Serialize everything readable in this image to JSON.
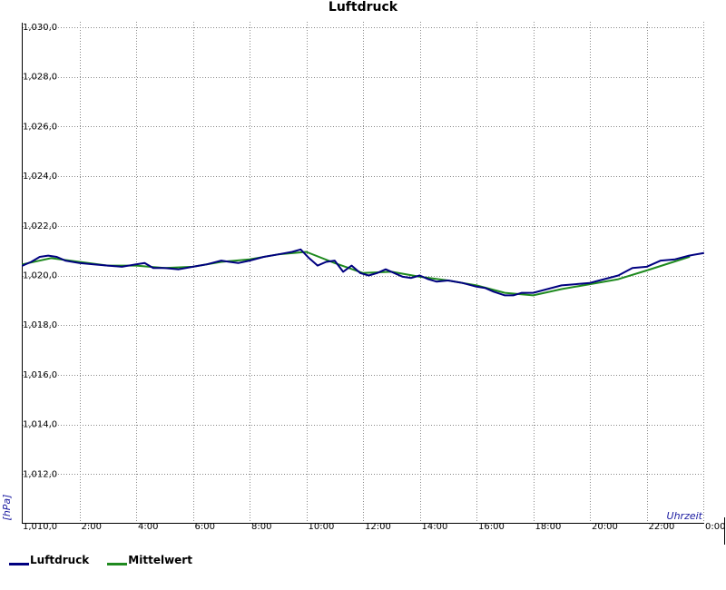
{
  "chart_data": {
    "type": "line",
    "title": "Luftdruck",
    "xlabel": "Uhrzeit",
    "ylabel": "[hPa]",
    "xlim": [
      0,
      24
    ],
    "ylim": [
      1010,
      1030
    ],
    "x_ticks": [
      "2:00",
      "4:00",
      "6:00",
      "8:00",
      "10:00",
      "12:00",
      "14:00",
      "16:00",
      "18:00",
      "20:00",
      "22:00",
      "0:00"
    ],
    "y_ticks": [
      "1,010,0",
      "1,012,0",
      "1,014,0",
      "1,016,0",
      "1,018,0",
      "1,020,0",
      "1,022,0",
      "1,024,0",
      "1,026,0",
      "1,028,0",
      "1,030,0"
    ],
    "grid": true,
    "legend_position": "bottom-left",
    "series": [
      {
        "name": "Luftdruck",
        "color": "#000080",
        "x": [
          0,
          0.3,
          0.6,
          0.9,
          1.2,
          1.5,
          2.0,
          2.5,
          3.0,
          3.5,
          4.0,
          4.3,
          4.6,
          5.0,
          5.5,
          6.0,
          6.5,
          7.0,
          7.3,
          7.6,
          8.0,
          8.5,
          9.0,
          9.5,
          9.8,
          10.1,
          10.4,
          10.7,
          11.0,
          11.3,
          11.6,
          11.9,
          12.2,
          12.5,
          12.8,
          13.1,
          13.4,
          13.7,
          14.0,
          14.3,
          14.6,
          15.0,
          15.5,
          16.0,
          16.3,
          16.6,
          17.0,
          17.3,
          17.6,
          18.0,
          18.5,
          19.0,
          19.5,
          20.0,
          20.5,
          21.0,
          21.5,
          22.0,
          22.5,
          23.0,
          23.5,
          24.0
        ],
        "y": [
          1020.4,
          1020.55,
          1020.75,
          1020.8,
          1020.75,
          1020.6,
          1020.5,
          1020.45,
          1020.4,
          1020.35,
          1020.45,
          1020.5,
          1020.3,
          1020.3,
          1020.25,
          1020.35,
          1020.45,
          1020.6,
          1020.55,
          1020.5,
          1020.6,
          1020.75,
          1020.85,
          1020.95,
          1021.05,
          1020.7,
          1020.4,
          1020.55,
          1020.6,
          1020.15,
          1020.4,
          1020.1,
          1020.0,
          1020.1,
          1020.25,
          1020.1,
          1019.95,
          1019.9,
          1020.0,
          1019.85,
          1019.75,
          1019.8,
          1019.7,
          1019.55,
          1019.5,
          1019.35,
          1019.2,
          1019.2,
          1019.3,
          1019.3,
          1019.45,
          1019.6,
          1019.65,
          1019.7,
          1019.85,
          1020.0,
          1020.3,
          1020.35,
          1020.6,
          1020.65,
          1020.8,
          1020.9
        ]
      },
      {
        "name": "Mittelwert",
        "color": "#1f8a1f",
        "x": [
          0,
          1.0,
          2.0,
          3.0,
          4.0,
          5.0,
          6.0,
          7.0,
          8.0,
          9.0,
          10.0,
          11.0,
          12.0,
          13.0,
          14.0,
          15.0,
          16.0,
          17.0,
          18.0,
          19.0,
          20.0,
          21.0,
          22.0,
          23.5
        ],
        "y": [
          1020.45,
          1020.7,
          1020.55,
          1020.4,
          1020.4,
          1020.3,
          1020.35,
          1020.55,
          1020.65,
          1020.85,
          1020.95,
          1020.5,
          1020.1,
          1020.15,
          1019.95,
          1019.8,
          1019.6,
          1019.3,
          1019.2,
          1019.45,
          1019.65,
          1019.85,
          1020.2,
          1020.75
        ]
      }
    ]
  }
}
